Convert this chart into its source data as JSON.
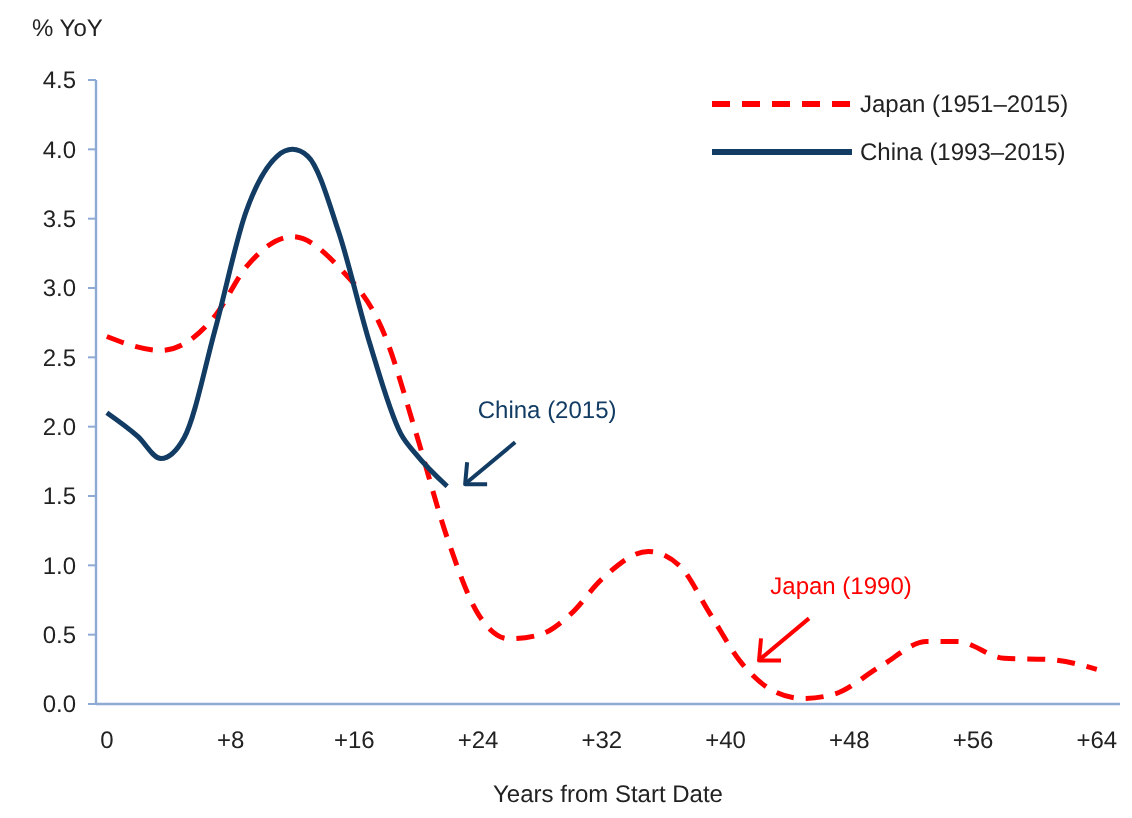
{
  "chart_data": {
    "type": "line",
    "ylabel": "% YoY",
    "xlabel": "Years from Start Date",
    "xlim": [
      -0.7,
      65.5
    ],
    "xticks": [
      {
        "value": 0,
        "label": "0"
      },
      {
        "value": 8,
        "label": "+8"
      },
      {
        "value": 16,
        "label": "+16"
      },
      {
        "value": 24,
        "label": "+24"
      },
      {
        "value": 32,
        "label": "+32"
      },
      {
        "value": 40,
        "label": "+40"
      },
      {
        "value": 48,
        "label": "+48"
      },
      {
        "value": 56,
        "label": "+56"
      },
      {
        "value": 64,
        "label": "+64"
      }
    ],
    "ylim": [
      0,
      4.5
    ],
    "yticks": [
      {
        "value": 0,
        "label": "0.0"
      },
      {
        "value": 0.5,
        "label": "0.5"
      },
      {
        "value": 1,
        "label": "1.0"
      },
      {
        "value": 1.5,
        "label": "1.5"
      },
      {
        "value": 2,
        "label": "2.0"
      },
      {
        "value": 2.5,
        "label": "2.5"
      },
      {
        "value": 3,
        "label": "3.0"
      },
      {
        "value": 3.5,
        "label": "3.5"
      },
      {
        "value": 4,
        "label": "4.0"
      },
      {
        "value": 4.5,
        "label": "4.5"
      }
    ],
    "grid": false,
    "legend": "top right",
    "marker": "none",
    "series": [
      {
        "name": "Japan (1951–2015)",
        "color": "#ff0000",
        "line_style": "dashed",
        "x": [
          0,
          3.5,
          7,
          9,
          12,
          15,
          18,
          20,
          22,
          24,
          26,
          28,
          30,
          32,
          35,
          37,
          39,
          41,
          43,
          45,
          47,
          50,
          53,
          55,
          58,
          61,
          64
        ],
        "values": [
          2.65,
          2.55,
          2.8,
          3.15,
          3.37,
          3.15,
          2.65,
          1.95,
          1.2,
          0.65,
          0.47,
          0.5,
          0.65,
          0.9,
          1.1,
          1.0,
          0.65,
          0.3,
          0.1,
          0.04,
          0.07,
          0.27,
          0.45,
          0.45,
          0.33,
          0.32,
          0.25
        ]
      },
      {
        "name": "China (1993–2015)",
        "color": "#123c63",
        "line_style": "solid",
        "x": [
          0,
          2,
          3.5,
          5,
          7,
          9,
          11,
          12,
          13,
          15,
          17,
          19,
          20,
          22
        ],
        "values": [
          2.1,
          1.93,
          1.77,
          1.92,
          2.7,
          3.55,
          3.95,
          4.0,
          3.95,
          3.4,
          2.6,
          1.95,
          1.8,
          1.57
        ]
      }
    ],
    "annotations": [
      {
        "text": "Japan (1990)",
        "x": 41,
        "y": 0.3
      },
      {
        "text": "China (2015)",
        "x": 22,
        "y": 1.57
      }
    ]
  }
}
